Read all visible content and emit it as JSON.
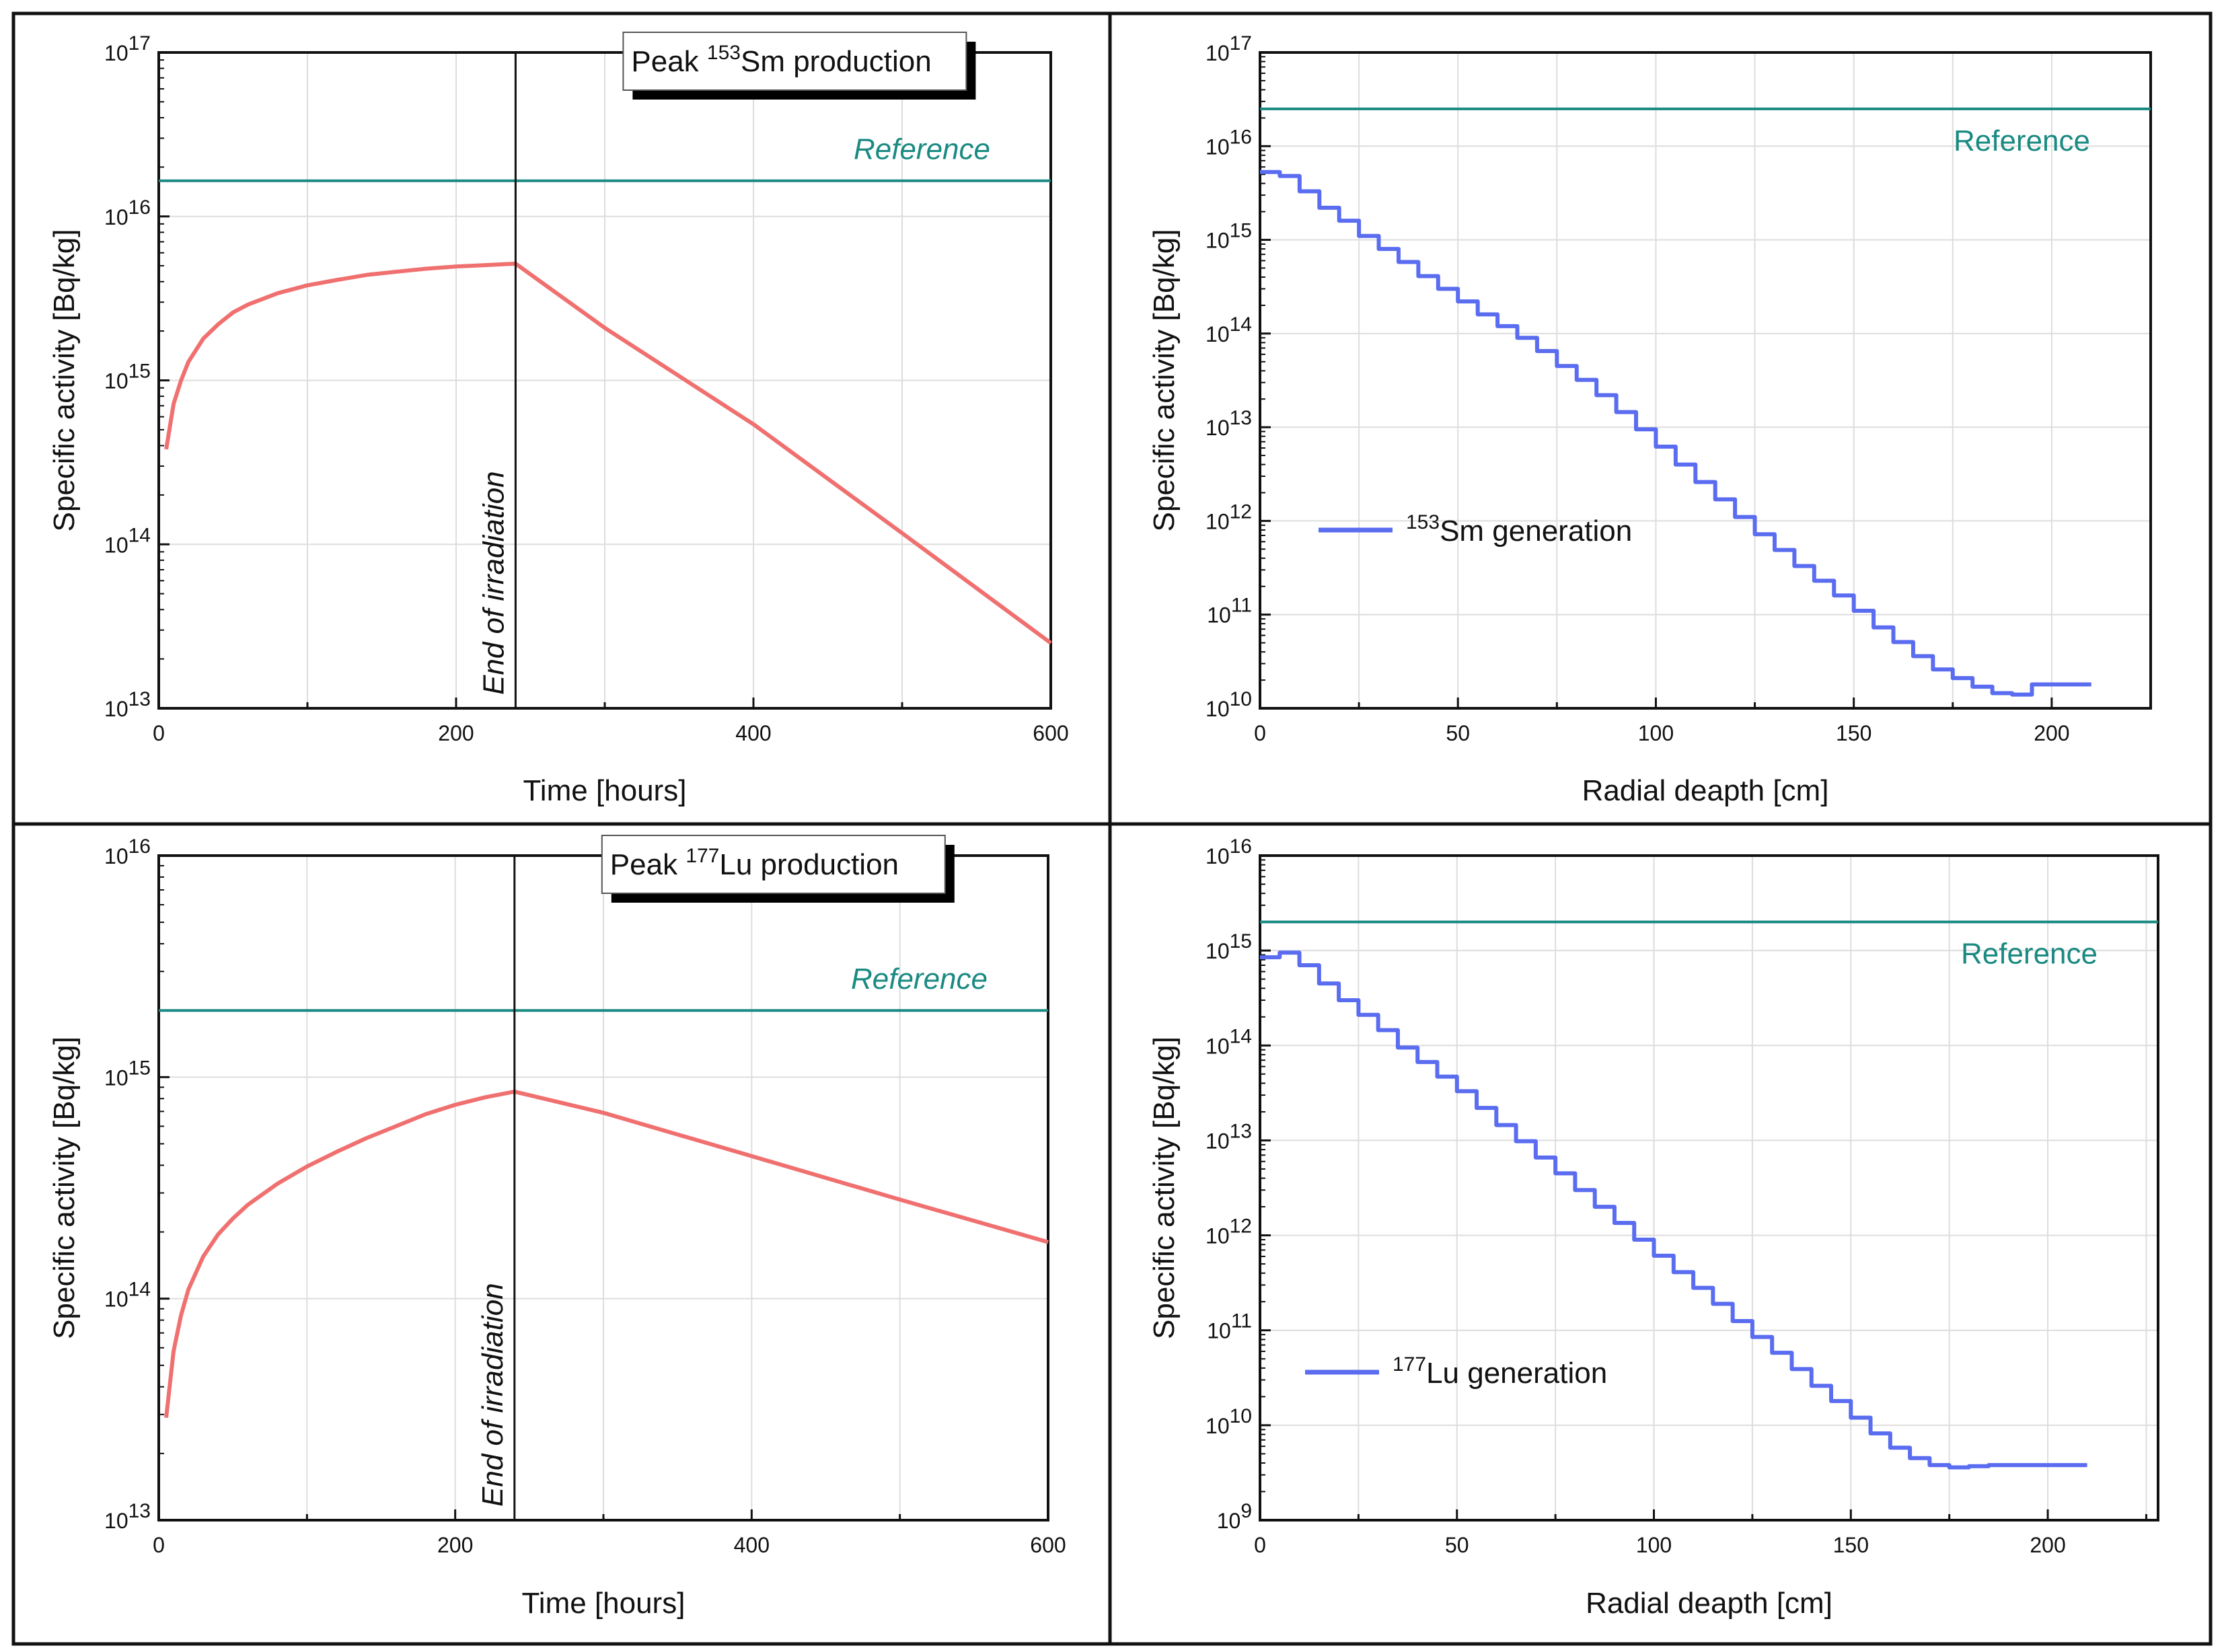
{
  "chart_data": [
    {
      "type": "line",
      "panel": "top-left",
      "title": "",
      "xlabel": "Time [hours]",
      "ylabel": "Specific activity [Bq/kg]",
      "xlim": [
        0,
        600
      ],
      "ylim": [
        10000000000000.0,
        1e+17
      ],
      "yscale": "log",
      "grid": true,
      "x_ticks": [
        "0",
        "200",
        "400",
        "600"
      ],
      "y_tick_exponents": [
        "13",
        "14",
        "15",
        "16",
        "17"
      ],
      "box_label": {
        "prefix": "Peak ",
        "sup": "153",
        "suffix": "Sm production"
      },
      "annotation": "End of irradiation",
      "annotation_x": 240,
      "reference_label": "Reference",
      "reference_value": 1.65e+16,
      "series": [
        {
          "color": "#f07070",
          "x": [
            5,
            10,
            15,
            20,
            30,
            40,
            50,
            60,
            80,
            100,
            120,
            140,
            160,
            180,
            200,
            220,
            240,
            300,
            400,
            500,
            600
          ],
          "values": [
            380000000000000.0,
            720000000000000.0,
            1000000000000000.0,
            1300000000000000.0,
            1800000000000000.0,
            2200000000000000.0,
            2600000000000000.0,
            2900000000000000.0,
            3400000000000000.0,
            3800000000000000.0,
            4100000000000000.0,
            4400000000000000.0,
            4600000000000000.0,
            4800000000000000.0,
            4950000000000000.0,
            5050000000000000.0,
            5150000000000000.0,
            2090000000000000.0,
            540000000000000.0,
            117000000000000.0,
            25000000000000.0
          ]
        }
      ]
    },
    {
      "type": "line",
      "panel": "top-right",
      "title": "",
      "xlabel": "Radial deapth [cm]",
      "ylabel": "Specific activity [Bq/kg]",
      "xlim": [
        0,
        225
      ],
      "ylim": [
        10000000000.0,
        1e+17
      ],
      "yscale": "log",
      "grid": true,
      "x_ticks": [
        "0",
        "50",
        "100",
        "150",
        "200"
      ],
      "y_tick_exponents": [
        "10",
        "11",
        "12",
        "13",
        "14",
        "15",
        "16",
        "17"
      ],
      "reference_label": "Reference",
      "reference_value": 2.5e+16,
      "legend": {
        "sup": "153",
        "text": "Sm generation",
        "position": "center-left"
      },
      "series": [
        {
          "name": "153Sm generation",
          "color": "#5a6cf0",
          "x": [
            0,
            5,
            10,
            15,
            20,
            25,
            30,
            35,
            40,
            45,
            50,
            55,
            60,
            65,
            70,
            75,
            80,
            85,
            90,
            95,
            100,
            105,
            110,
            115,
            120,
            125,
            130,
            135,
            140,
            145,
            150,
            155,
            160,
            165,
            170,
            175,
            180,
            185,
            190,
            195,
            200,
            205
          ],
          "values": [
            5300000000000000.0,
            4800000000000000.0,
            3300000000000000.0,
            2200000000000000.0,
            1600000000000000.0,
            1100000000000000.0,
            800000000000000.0,
            580000000000000.0,
            410000000000000.0,
            300000000000000.0,
            220000000000000.0,
            160000000000000.0,
            120000000000000.0,
            90000000000000.0,
            65000000000000.0,
            45000000000000.0,
            32000000000000.0,
            22000000000000.0,
            14500000000000.0,
            9500000000000.0,
            6200000000000.0,
            4000000000000.0,
            2600000000000.0,
            1700000000000.0,
            1100000000000.0,
            720000000000.0,
            490000000000.0,
            330000000000.0,
            230000000000.0,
            160000000000.0,
            110000000000.0,
            73000000000.0,
            51000000000.0,
            36000000000.0,
            26000000000.0,
            21000000000.0,
            17000000000.0,
            14500000000.0,
            14000000000.0,
            18000000000.0,
            18000000000.0,
            18000000000.0
          ]
        }
      ]
    },
    {
      "type": "line",
      "panel": "bottom-left",
      "title": "",
      "xlabel": "Time [hours]",
      "ylabel": "Specific activity [Bq/kg]",
      "xlim": [
        0,
        600
      ],
      "ylim": [
        10000000000000.0,
        1e+16
      ],
      "yscale": "log",
      "grid": true,
      "x_ticks": [
        "0",
        "200",
        "400",
        "600"
      ],
      "y_tick_exponents": [
        "13",
        "14",
        "15",
        "16"
      ],
      "box_label": {
        "prefix": "Peak ",
        "sup": "177",
        "suffix": "Lu production"
      },
      "annotation": "End of irradiation",
      "annotation_x": 240,
      "reference_label": "Reference",
      "reference_value": 2000000000000000.0,
      "series": [
        {
          "color": "#f07070",
          "x": [
            5,
            10,
            15,
            20,
            30,
            40,
            50,
            60,
            80,
            100,
            120,
            140,
            160,
            180,
            200,
            220,
            240,
            300,
            400,
            500,
            600
          ],
          "values": [
            29000000000000.0,
            58000000000000.0,
            84000000000000.0,
            110000000000000.0,
            155000000000000.0,
            195000000000000.0,
            230000000000000.0,
            265000000000000.0,
            330000000000000.0,
            395000000000000.0,
            460000000000000.0,
            530000000000000.0,
            600000000000000.0,
            680000000000000.0,
            750000000000000.0,
            810000000000000.0,
            860000000000000.0,
            690000000000000.0,
            440000000000000.0,
            280000000000000.0,
            180000000000000.0
          ]
        }
      ]
    },
    {
      "type": "line",
      "panel": "bottom-right",
      "title": "",
      "xlabel": "Radial deapth [cm]",
      "ylabel": "Specific activity [Bq/kg]",
      "xlim": [
        0,
        228
      ],
      "ylim": [
        1000000000.0,
        1e+16
      ],
      "yscale": "log",
      "grid": true,
      "x_ticks": [
        "0",
        "50",
        "100",
        "150",
        "200"
      ],
      "y_tick_exponents": [
        "9",
        "10",
        "11",
        "12",
        "13",
        "14",
        "15",
        "16"
      ],
      "reference_label": "Reference",
      "reference_value": 2000000000000000.0,
      "legend": {
        "sup": "177",
        "text": "Lu generation",
        "position": "center-left"
      },
      "series": [
        {
          "name": "177Lu generation",
          "color": "#5a6cf0",
          "x": [
            0,
            5,
            10,
            15,
            20,
            25,
            30,
            35,
            40,
            45,
            50,
            55,
            60,
            65,
            70,
            75,
            80,
            85,
            90,
            95,
            100,
            105,
            110,
            115,
            120,
            125,
            130,
            135,
            140,
            145,
            150,
            155,
            160,
            165,
            170,
            175,
            180,
            185,
            190,
            195,
            200,
            205
          ],
          "values": [
            850000000000000.0,
            950000000000000.0,
            700000000000000.0,
            450000000000000.0,
            300000000000000.0,
            210000000000000.0,
            145000000000000.0,
            95000000000000.0,
            67000000000000.0,
            47000000000000.0,
            33000000000000.0,
            22000000000000.0,
            14500000000000.0,
            9800000000000.0,
            6600000000000.0,
            4500000000000.0,
            3000000000000.0,
            2000000000000.0,
            1350000000000.0,
            900000000000.0,
            610000000000.0,
            410000000000.0,
            280000000000.0,
            190000000000.0,
            125000000000.0,
            85000000000.0,
            58000000000.0,
            39000000000.0,
            26000000000.0,
            18000000000.0,
            12000000000.0,
            8200000000.0,
            5800000000.0,
            4500000000.0,
            3800000000.0,
            3600000000.0,
            3700000000.0,
            3800000000.0,
            3800000000.0,
            3800000000.0,
            3800000000.0,
            3800000000.0
          ]
        }
      ]
    }
  ]
}
